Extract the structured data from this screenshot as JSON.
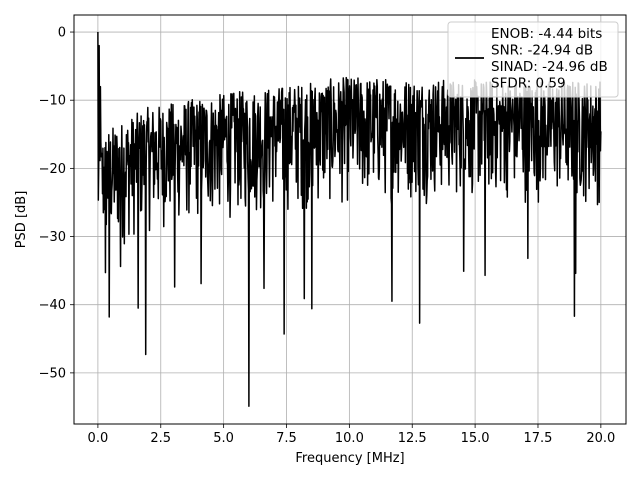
{
  "chart_data": {
    "type": "line",
    "title": "",
    "xlabel": "Frequency [MHz]",
    "ylabel": "PSD [dB]",
    "xlim": [
      -0.95,
      21.0
    ],
    "ylim": [
      -57.5,
      2.5
    ],
    "xticks": [
      0.0,
      2.5,
      5.0,
      7.5,
      10.0,
      12.5,
      15.0,
      17.5,
      20.0
    ],
    "xtick_labels": [
      "0.0",
      "2.5",
      "5.0",
      "7.5",
      "10.0",
      "12.5",
      "15.0",
      "17.5",
      "20.0"
    ],
    "yticks": [
      0,
      -10,
      -20,
      -30,
      -40,
      -50
    ],
    "ytick_labels": [
      "0",
      "−10",
      "−20",
      "−30",
      "−40",
      "−50"
    ],
    "grid": true,
    "legend_placement": "upper-right",
    "legend_entries": [
      "ENOB: -4.44 bits",
      "SNR: -24.94 dB",
      "SINAD: -24.96 dB",
      "SFDR: 0.59"
    ],
    "series": [
      {
        "color": "#000000",
        "x_range": [
          0.0,
          20.0
        ],
        "points": 1200,
        "trend_upper": [
          [
            0.0,
            -15
          ],
          [
            2.0,
            -11
          ],
          [
            5.0,
            -9
          ],
          [
            10.0,
            -6.5
          ],
          [
            15.0,
            -7
          ],
          [
            20.0,
            -7
          ]
        ],
        "trend_lower": [
          [
            0.0,
            -34
          ],
          [
            2.0,
            -30
          ],
          [
            5.0,
            -28
          ],
          [
            10.0,
            -26
          ],
          [
            15.0,
            -25
          ],
          [
            20.0,
            -26
          ]
        ],
        "peaks": [
          [
            0.0,
            0
          ],
          [
            0.05,
            -2
          ],
          [
            0.1,
            -8
          ],
          [
            0.15,
            -18
          ]
        ],
        "dips": [
          [
            0.3,
            -35.3
          ],
          [
            0.45,
            -41.8
          ],
          [
            0.9,
            -34.4
          ],
          [
            1.6,
            -40.5
          ],
          [
            1.9,
            -47.3
          ],
          [
            3.05,
            -37.4
          ],
          [
            4.1,
            -36.9
          ],
          [
            6.0,
            -54.9
          ],
          [
            6.6,
            -37.6
          ],
          [
            7.4,
            -44.3
          ],
          [
            8.2,
            -39.1
          ],
          [
            8.5,
            -40.6
          ],
          [
            11.7,
            -39.5
          ],
          [
            12.8,
            -42.7
          ],
          [
            14.55,
            -35.1
          ],
          [
            15.4,
            -35.7
          ],
          [
            17.1,
            -33.2
          ],
          [
            18.95,
            -41.7
          ],
          [
            19.0,
            -35.4
          ]
        ]
      }
    ]
  }
}
